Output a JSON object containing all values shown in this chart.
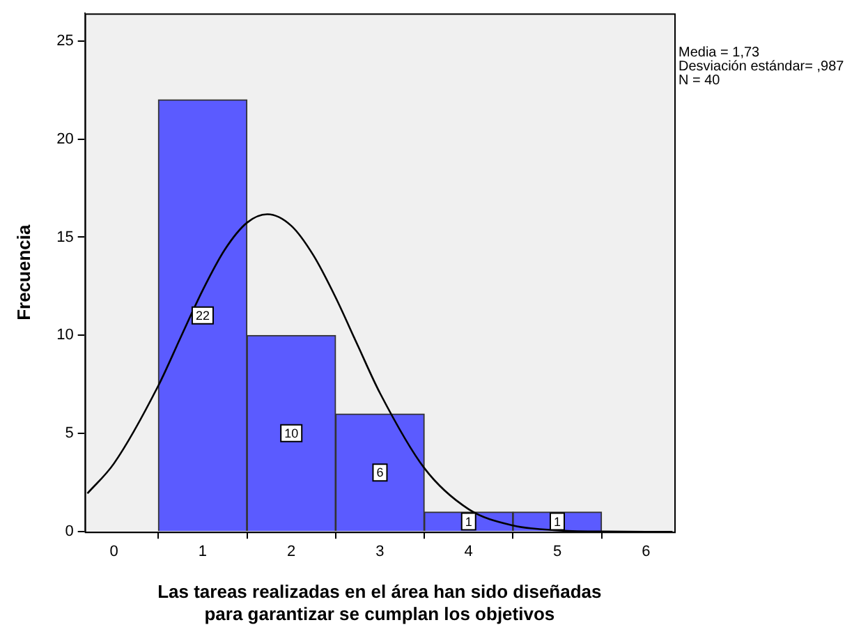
{
  "chart_data": {
    "type": "histogram",
    "xlabel": "Las tareas realizadas en el área han sido diseñadas\npara garantizar se cumplan los objetivos",
    "ylabel": "Frecuencia",
    "bins": [
      0.5,
      1.5,
      2.5,
      3.5,
      4.5,
      5.5
    ],
    "values": [
      22,
      10,
      6,
      1,
      1
    ],
    "color": "#5b5bff",
    "value_labels": [
      "22",
      "10",
      "6",
      "1",
      "1"
    ],
    "series": [
      {
        "type": "line",
        "color": "#000000",
        "x": [
          -0.3,
          0,
          0.5,
          0.75,
          1,
          1.25,
          1.5,
          1.73,
          2,
          2.25,
          2.5,
          2.75,
          3,
          3.5,
          4,
          4.5,
          5,
          5.5,
          6,
          6.3
        ],
        "values": [
          1.95,
          3.48,
          7.44,
          9.88,
          12.3,
          14.37,
          15.74,
          16.17,
          15.58,
          14.07,
          11.93,
          9.48,
          7.06,
          3.24,
          1.15,
          0.32,
          0.07,
          0.01,
          0,
          0
        ]
      }
    ],
    "xlim": [
      -0.33,
      6.32
    ],
    "xticks": [
      0,
      1,
      2,
      3,
      4,
      5,
      6
    ],
    "ylim": [
      0,
      26.4
    ],
    "yticks": [
      0,
      5,
      10,
      15,
      20,
      25
    ],
    "grid": false,
    "legend": false,
    "marker": "none",
    "line_style": "solid",
    "annotations": [
      "Media = 1,73",
      "Desviación estándar= ,987",
      "N = 40"
    ]
  }
}
